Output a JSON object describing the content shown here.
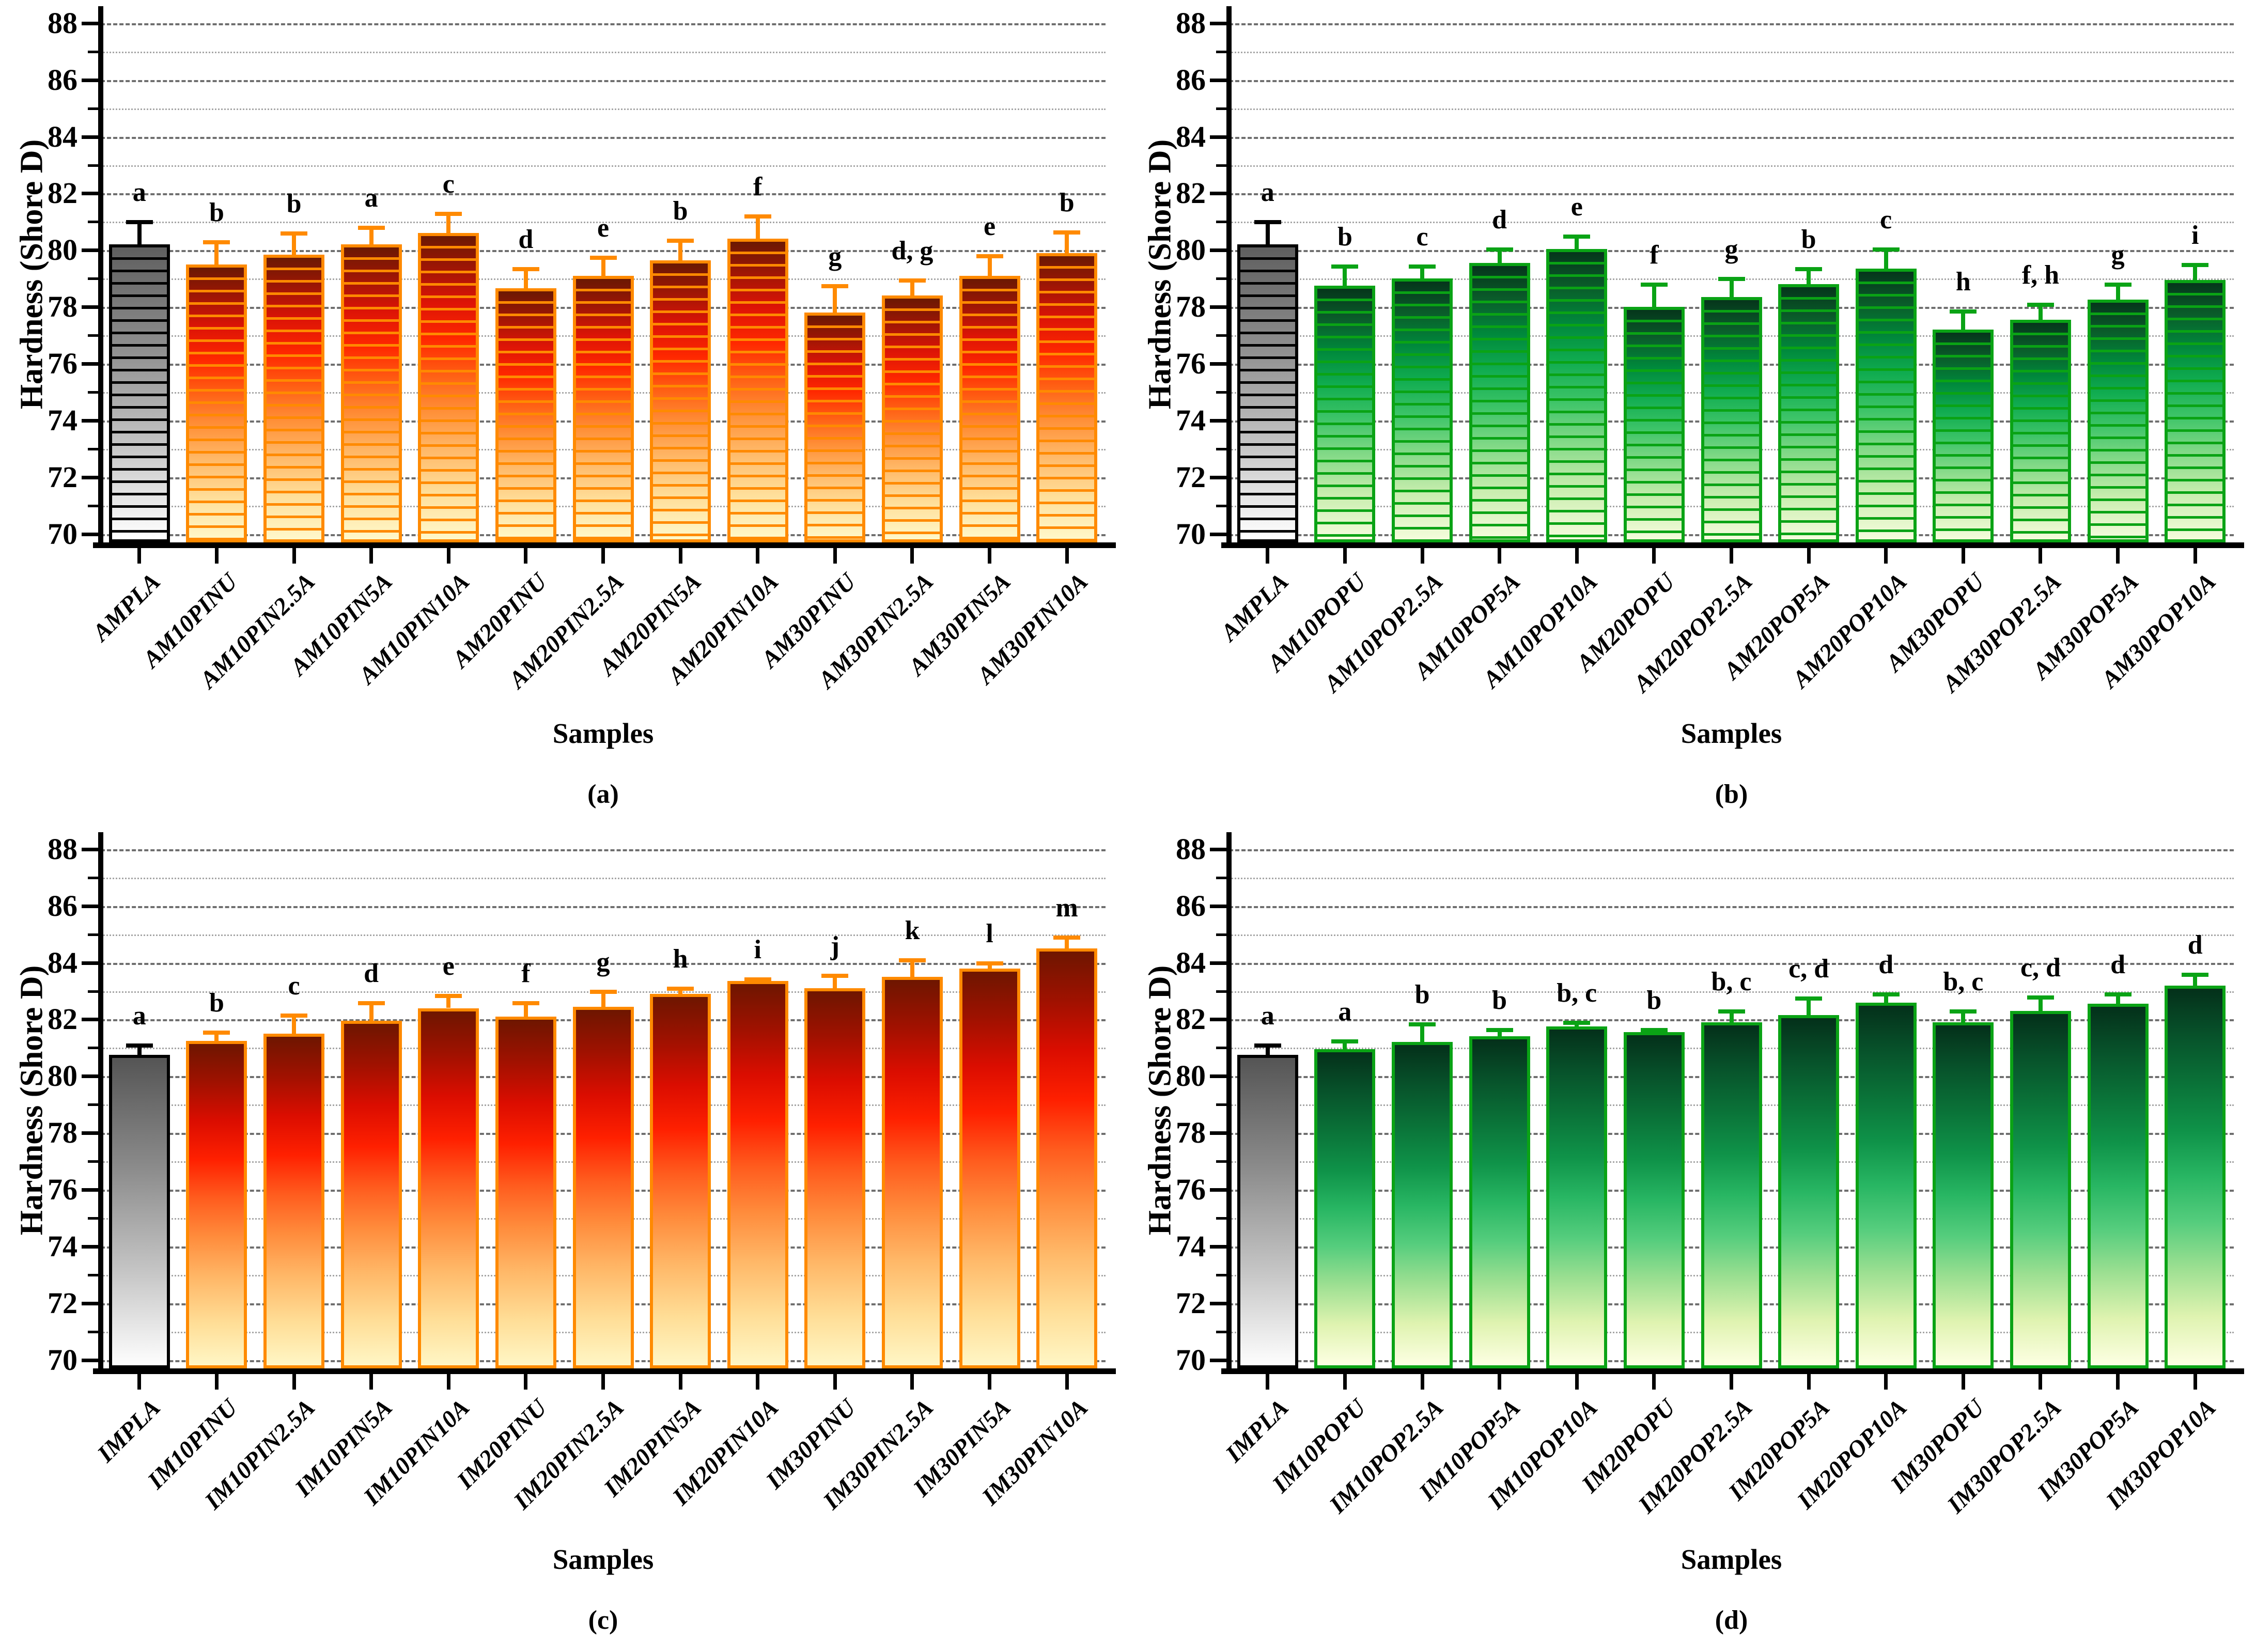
{
  "figure": {
    "background": "#FFFFFF",
    "grid_even_color": "#6F6F6F",
    "grid_odd_color": "#A6A6A6",
    "axis_color": "#000000"
  },
  "axis": {
    "ylabel": "Hardness (Shore D)",
    "xlabel": "Samples",
    "ymin": 69.7,
    "ymax": 88.6,
    "major_ticks": [
      70,
      72,
      74,
      76,
      78,
      80,
      82,
      84,
      86,
      88
    ],
    "minor_ticks": [
      71,
      73,
      75,
      77,
      79,
      81,
      83,
      85,
      87
    ],
    "grid": "horizontal, dashed at even values, dotted at odd values"
  },
  "chart_data": [
    {
      "type": "bar",
      "panel": "a",
      "caption": "(a)",
      "xlabel": "Samples",
      "ylabel": "Hardness (Shore D)",
      "ylim": [
        69.7,
        88.6
      ],
      "legend_position": "none",
      "categories": [
        "AMPLA",
        "AM10PINU",
        "AM10PIN2.5A",
        "AM10PIN5A",
        "AM10PIN10A",
        "AM20PINU",
        "AM20PIN2.5A",
        "AM20PIN5A",
        "AM20PIN10A",
        "AM30PINU",
        "AM30PIN2.5A",
        "AM30PIN5A",
        "AM30PIN10A"
      ],
      "values": [
        80.2,
        79.5,
        79.85,
        80.2,
        80.6,
        78.65,
        79.1,
        79.65,
        80.4,
        77.8,
        78.4,
        79.1,
        79.9
      ],
      "errors": [
        0.8,
        0.8,
        0.75,
        0.6,
        0.7,
        0.7,
        0.65,
        0.7,
        0.8,
        0.95,
        0.55,
        0.7,
        0.75
      ],
      "letters": [
        "a",
        "b",
        "b",
        "a",
        "c",
        "d",
        "e",
        "b",
        "f",
        "g",
        "d, g",
        "e",
        "b"
      ],
      "style": {
        "striped": true,
        "bar_outline": "#FF8A00",
        "error_color": "#FF8A00",
        "bar_gradient": [
          [
            0,
            "#6B1903"
          ],
          [
            10,
            "#9C1605"
          ],
          [
            22,
            "#DD1406"
          ],
          [
            34,
            "#FF2800"
          ],
          [
            46,
            "#FF6014"
          ],
          [
            58,
            "#FF9038"
          ],
          [
            70,
            "#FFB766"
          ],
          [
            85,
            "#FFDF9A"
          ],
          [
            100,
            "#FFF8CA"
          ]
        ],
        "control_outline": "#000000",
        "control_error_color": "#000000",
        "control_gradient": [
          [
            0,
            "#5F5F5F"
          ],
          [
            35,
            "#8F8F8F"
          ],
          [
            70,
            "#C9C9C9"
          ],
          [
            100,
            "#FFFFFF"
          ]
        ]
      }
    },
    {
      "type": "bar",
      "panel": "b",
      "caption": "(b)",
      "xlabel": "Samples",
      "ylabel": "Hardness (Shore D)",
      "ylim": [
        69.7,
        88.6
      ],
      "legend_position": "none",
      "categories": [
        "AMPLA",
        "AM10POPU",
        "AM10POP2.5A",
        "AM10POP5A",
        "AM10POP10A",
        "AM20POPU",
        "AM20POP2.5A",
        "AM20POP5A",
        "AM20POP10A",
        "AM30POPU",
        "AM30POP2.5A",
        "AM30POP5A",
        "AM30POP10A"
      ],
      "values": [
        80.2,
        78.75,
        79.0,
        79.55,
        80.05,
        78.0,
        78.35,
        78.8,
        79.35,
        77.2,
        77.55,
        78.25,
        78.95
      ],
      "errors": [
        0.8,
        0.7,
        0.45,
        0.5,
        0.45,
        0.8,
        0.65,
        0.55,
        0.7,
        0.65,
        0.55,
        0.55,
        0.55
      ],
      "letters": [
        "a",
        "b",
        "c",
        "d",
        "e",
        "f",
        "g",
        "b",
        "c",
        "h",
        "f, h",
        "g",
        "i"
      ],
      "style": {
        "striped": true,
        "bar_outline": "#0AA315",
        "error_color": "#0AA315",
        "bar_gradient": [
          [
            0,
            "#05351B"
          ],
          [
            12,
            "#0A5C2A"
          ],
          [
            25,
            "#00893C"
          ],
          [
            38,
            "#10AC50"
          ],
          [
            52,
            "#3DC468"
          ],
          [
            66,
            "#82D987"
          ],
          [
            82,
            "#C8EDAE"
          ],
          [
            100,
            "#F5FCDC"
          ]
        ],
        "control_outline": "#000000",
        "control_error_color": "#000000",
        "control_gradient": [
          [
            0,
            "#5F5F5F"
          ],
          [
            35,
            "#8F8F8F"
          ],
          [
            70,
            "#C9C9C9"
          ],
          [
            100,
            "#FFFFFF"
          ]
        ]
      }
    },
    {
      "type": "bar",
      "panel": "c",
      "caption": "(c)",
      "xlabel": "Samples",
      "ylabel": "Hardness (Shore D)",
      "ylim": [
        69.7,
        88.6
      ],
      "legend_position": "none",
      "categories": [
        "IMPLA",
        "IM10PINU",
        "IM10PIN2.5A",
        "IM10PIN5A",
        "IM10PIN10A",
        "IM20PINU",
        "IM20PIN2.5A",
        "IM20PIN5A",
        "IM20PIN10A",
        "IM30PINU",
        "IM30PIN2.5A",
        "IM30PIN5A",
        "IM30PIN10A"
      ],
      "values": [
        80.75,
        81.25,
        81.5,
        81.95,
        82.4,
        82.1,
        82.45,
        82.9,
        83.35,
        83.1,
        83.5,
        83.8,
        84.5
      ],
      "errors": [
        0.35,
        0.3,
        0.65,
        0.65,
        0.45,
        0.5,
        0.55,
        0.2,
        0.08,
        0.45,
        0.6,
        0.2,
        0.4
      ],
      "letters": [
        "a",
        "b",
        "c",
        "d",
        "e",
        "f",
        "g",
        "h",
        "i",
        "j",
        "k",
        "l",
        "m"
      ],
      "style": {
        "striped": false,
        "bar_outline": "#FF8A00",
        "error_color": "#FF8A00",
        "bar_gradient": [
          [
            0,
            "#6E1600"
          ],
          [
            12,
            "#A01100"
          ],
          [
            24,
            "#DB0D00"
          ],
          [
            36,
            "#FF2000"
          ],
          [
            48,
            "#FF5C1E"
          ],
          [
            60,
            "#FF8C3C"
          ],
          [
            73,
            "#FFB868"
          ],
          [
            87,
            "#FFDE97"
          ],
          [
            100,
            "#FFF6C5"
          ]
        ],
        "control_outline": "#000000",
        "control_error_color": "#000000",
        "control_gradient": [
          [
            0,
            "#555555"
          ],
          [
            35,
            "#8A8A8A"
          ],
          [
            70,
            "#C6C6C6"
          ],
          [
            100,
            "#FEFEFE"
          ]
        ]
      }
    },
    {
      "type": "bar",
      "panel": "d",
      "caption": "(d)",
      "xlabel": "Samples",
      "ylabel": "Hardness (Shore D)",
      "ylim": [
        69.7,
        88.6
      ],
      "legend_position": "none",
      "categories": [
        "IMPLA",
        "IM10POPU",
        "IM10POP2.5A",
        "IM10POP5A",
        "IM10POP10A",
        "IM20POPU",
        "IM20POP2.5A",
        "IM20POP5A",
        "IM20POP10A",
        "IM30POPU",
        "IM30POP2.5A",
        "IM30POP5A",
        "IM30POP10A"
      ],
      "values": [
        80.75,
        80.95,
        81.2,
        81.4,
        81.75,
        81.55,
        81.9,
        82.15,
        82.6,
        81.9,
        82.3,
        82.55,
        83.2
      ],
      "errors": [
        0.35,
        0.3,
        0.65,
        0.25,
        0.15,
        0.1,
        0.4,
        0.6,
        0.3,
        0.4,
        0.5,
        0.35,
        0.4
      ],
      "letters": [
        "a",
        "a",
        "b",
        "b",
        "b, c",
        "b",
        "b, c",
        "c, d",
        "d",
        "b, c",
        "c, d",
        "d",
        "d"
      ],
      "style": {
        "striped": false,
        "bar_outline": "#0AA315",
        "error_color": "#0AA315",
        "bar_gradient": [
          [
            0,
            "#04301A"
          ],
          [
            12,
            "#07512A"
          ],
          [
            25,
            "#0A7238"
          ],
          [
            38,
            "#0F9349"
          ],
          [
            50,
            "#28B663"
          ],
          [
            62,
            "#55CD7D"
          ],
          [
            74,
            "#9BDF91"
          ],
          [
            87,
            "#DFF3B0"
          ],
          [
            100,
            "#FDFFE3"
          ]
        ],
        "control_outline": "#000000",
        "control_error_color": "#000000",
        "control_gradient": [
          [
            0,
            "#555555"
          ],
          [
            35,
            "#8A8A8A"
          ],
          [
            70,
            "#C6C6C6"
          ],
          [
            100,
            "#FEFEFE"
          ]
        ]
      }
    }
  ]
}
